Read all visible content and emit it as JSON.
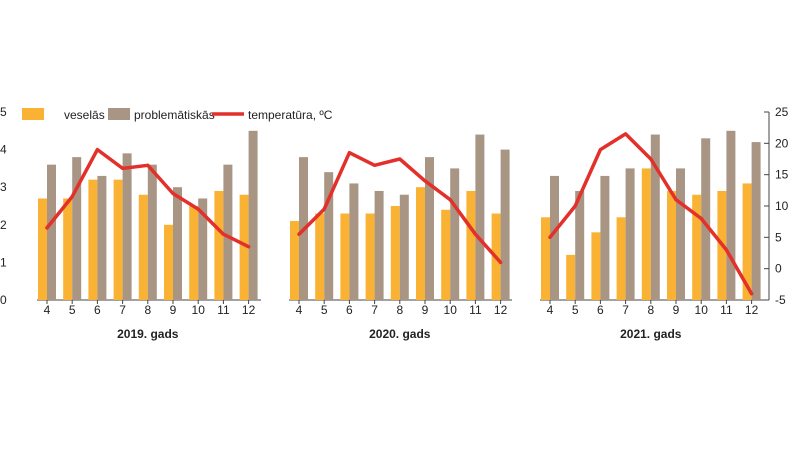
{
  "chart_data": {
    "type": "bar+line",
    "legend": {
      "position": "top-left",
      "items": [
        "veselās",
        "problemātiskās",
        "temperatūra, ºC"
      ]
    },
    "series": [
      {
        "name": "veselās",
        "type": "bar",
        "axis": "left",
        "color": "#F9B233"
      },
      {
        "name": "problemātiskās",
        "type": "bar",
        "axis": "left",
        "color": "#A89584"
      },
      {
        "name": "temperatūra, ºC",
        "type": "line",
        "axis": "right",
        "color": "#E3302A"
      }
    ],
    "y_left": {
      "min": 0,
      "max": 5,
      "ticks": [
        "0",
        "1",
        "2",
        "3",
        "4",
        "5"
      ]
    },
    "y_right": {
      "min": -5,
      "max": 25,
      "ticks": [
        "-5",
        "0",
        "5",
        "10",
        "15",
        "20",
        "25"
      ]
    },
    "grid": false,
    "groups": [
      {
        "label": "2019. gads",
        "months": [
          "4",
          "5",
          "6",
          "7",
          "8",
          "9",
          "10",
          "11",
          "12"
        ],
        "veselas": [
          2.7,
          2.7,
          3.2,
          3.2,
          2.8,
          2.0,
          2.5,
          2.9,
          2.8
        ],
        "problematiskas": [
          3.6,
          3.8,
          3.3,
          3.9,
          3.6,
          3.0,
          2.7,
          3.6,
          4.5
        ],
        "temperature": [
          6.5,
          11.5,
          19.0,
          16.0,
          16.5,
          12.0,
          9.5,
          5.5,
          3.5
        ]
      },
      {
        "label": "2020. gads",
        "months": [
          "4",
          "5",
          "6",
          "7",
          "8",
          "9",
          "10",
          "11",
          "12"
        ],
        "veselas": [
          2.1,
          2.3,
          2.3,
          2.3,
          2.5,
          3.0,
          2.4,
          2.9,
          2.3
        ],
        "problematiskas": [
          3.8,
          3.4,
          3.1,
          2.9,
          2.8,
          3.8,
          3.5,
          4.4,
          4.0
        ],
        "temperature": [
          5.5,
          9.5,
          18.5,
          16.5,
          17.5,
          14.0,
          11.0,
          5.5,
          1.0
        ]
      },
      {
        "label": "2021. gads",
        "months": [
          "4",
          "5",
          "6",
          "7",
          "8",
          "9",
          "10",
          "11",
          "12"
        ],
        "veselas": [
          2.2,
          1.2,
          1.8,
          2.2,
          3.5,
          2.9,
          2.8,
          2.9,
          3.1
        ],
        "problematiskas": [
          3.3,
          2.9,
          3.3,
          3.5,
          4.4,
          3.5,
          4.3,
          4.5,
          4.2
        ],
        "temperature": [
          5.0,
          10.0,
          19.0,
          21.5,
          17.5,
          11.0,
          8.0,
          3.0,
          -4.0
        ]
      }
    ]
  }
}
